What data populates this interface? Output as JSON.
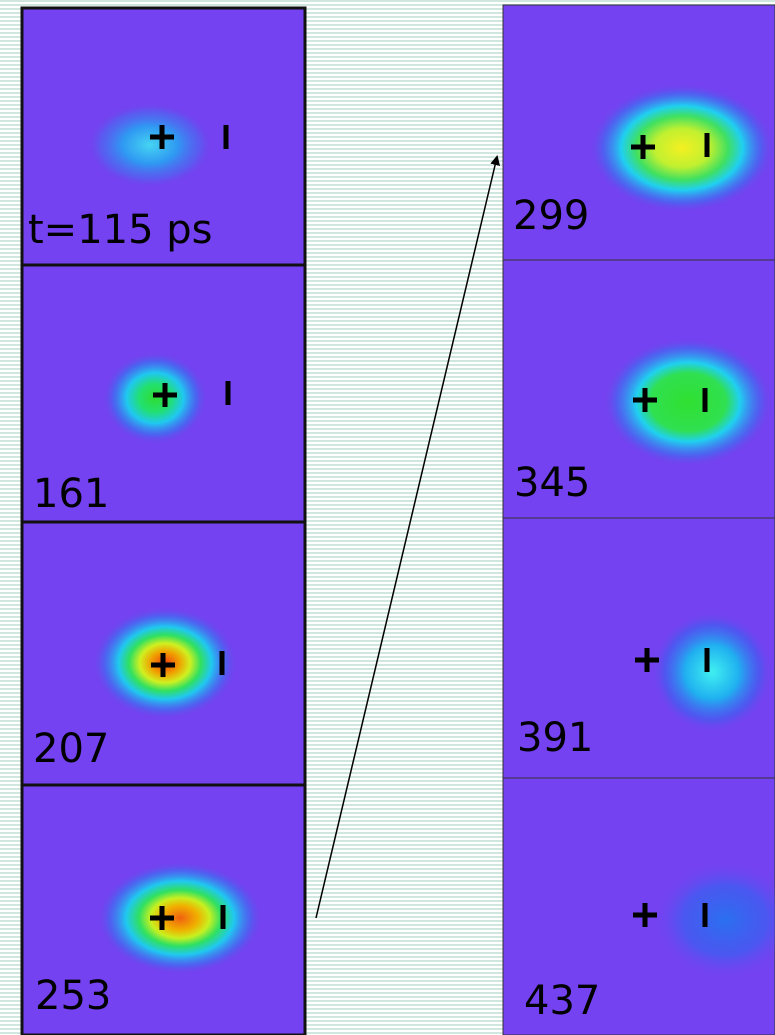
{
  "frames": [
    {
      "label": "t=115 ps"
    },
    {
      "label": "161"
    },
    {
      "label": "207"
    },
    {
      "label": "253"
    },
    {
      "label": "299"
    },
    {
      "label": "345"
    },
    {
      "label": "391"
    },
    {
      "label": "437"
    }
  ]
}
